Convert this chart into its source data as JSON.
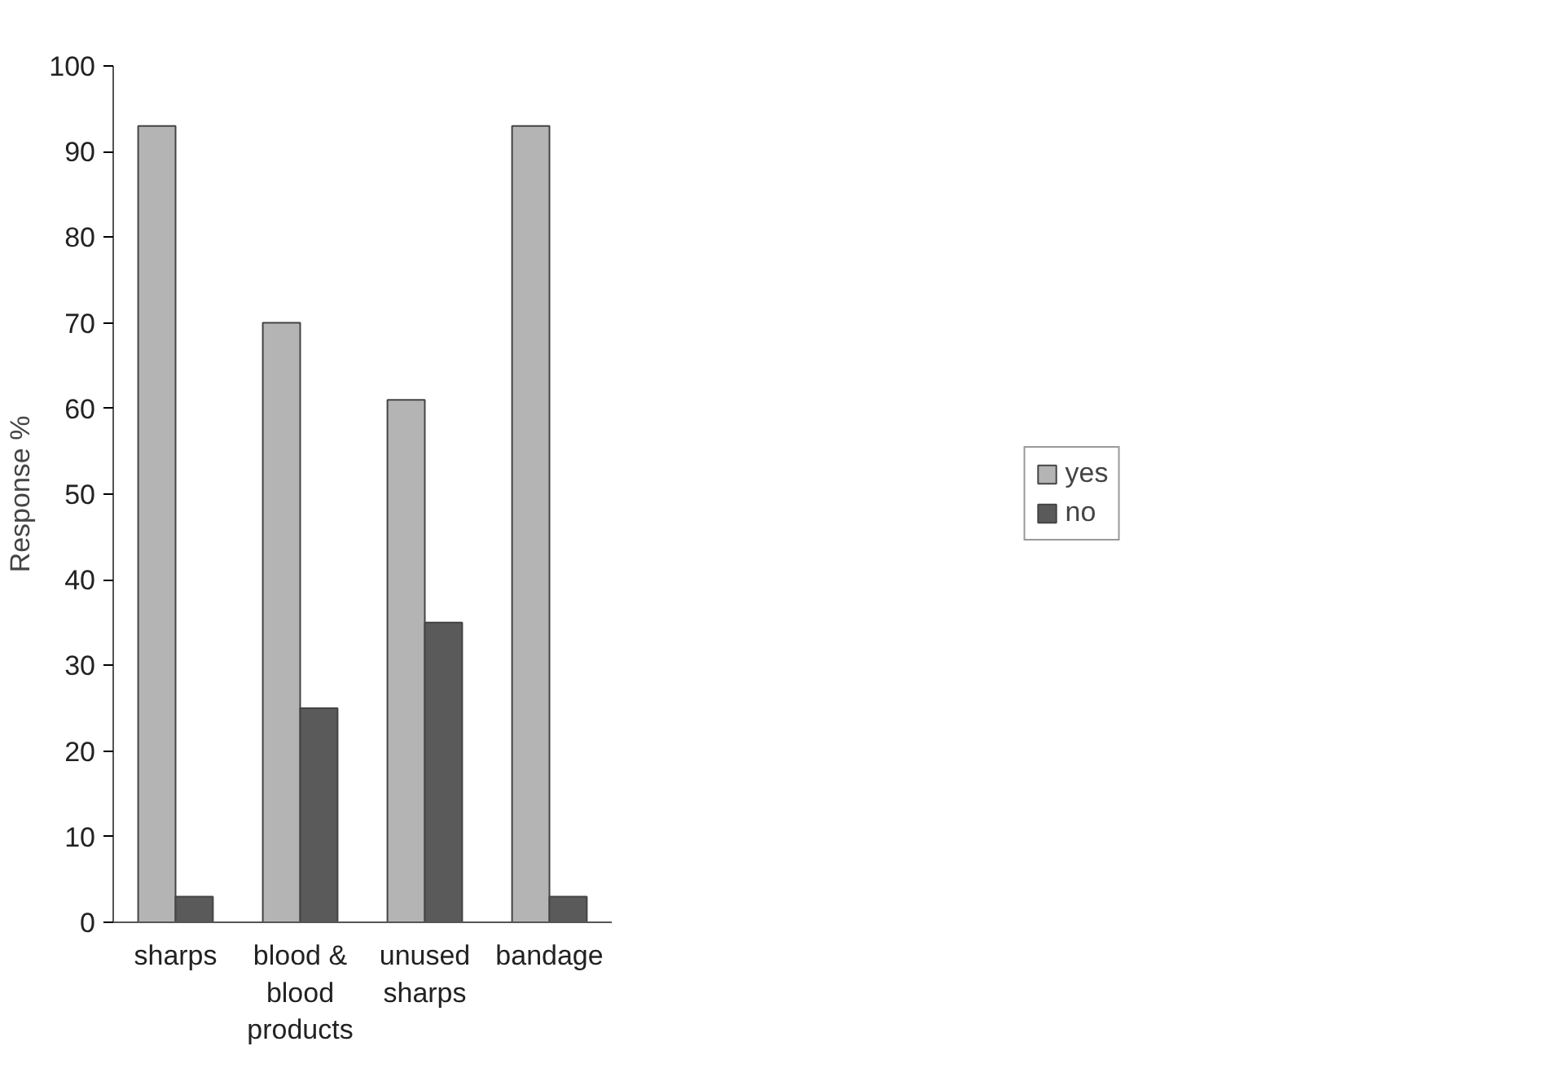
{
  "chart_data": {
    "type": "bar",
    "ylabel": "Response %",
    "categories": [
      "sharps",
      "blood &\nblood\nproducts",
      "unused\nsharps",
      "bandage"
    ],
    "series": [
      {
        "name": "yes",
        "color": "#b4b4b4",
        "values": [
          93,
          70,
          61,
          93
        ]
      },
      {
        "name": "no",
        "color": "#5a5a5a",
        "values": [
          3,
          25,
          35,
          3
        ]
      }
    ],
    "ylim": [
      0,
      100
    ],
    "yticks": [
      0,
      10,
      20,
      30,
      40,
      50,
      60,
      70,
      80,
      90,
      100
    ],
    "grid": false,
    "legend": "right"
  }
}
